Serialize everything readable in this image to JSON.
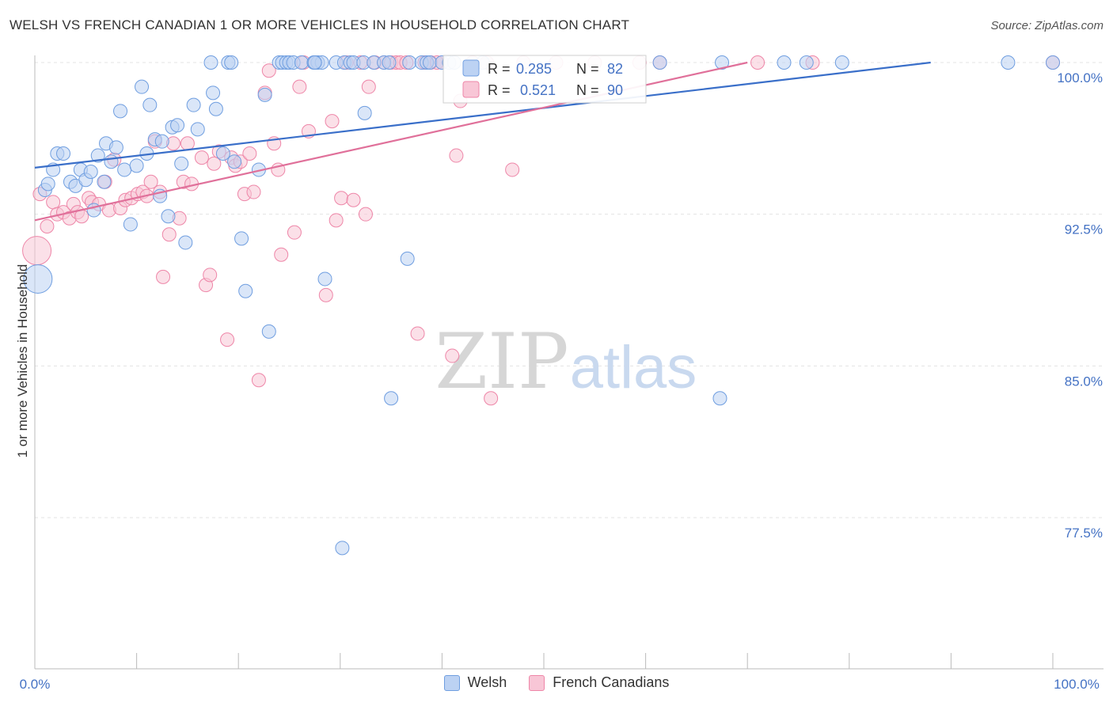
{
  "title": "WELSH VS FRENCH CANADIAN 1 OR MORE VEHICLES IN HOUSEHOLD CORRELATION CHART",
  "source": "Source: ZipAtlas.com",
  "watermark": {
    "zip": "ZIP",
    "atlas": "atlas"
  },
  "colors": {
    "welsh": "#6f9ee0",
    "welsh_fill": "#bcd2f3",
    "french": "#ee86a8",
    "french_fill": "#f8c6d6",
    "welsh_line": "#3a6fc9",
    "french_line": "#e0709a"
  },
  "legend": {
    "rows": [
      {
        "r_label": "R =",
        "r_value": "0.285",
        "n_label": "N =",
        "n_value": "82"
      },
      {
        "r_label": "R =",
        "r_value": "0.521",
        "n_label": "N =",
        "n_value": "90"
      }
    ]
  },
  "chart_data": {
    "type": "scatter",
    "title": "WELSH VS FRENCH CANADIAN 1 OR MORE VEHICLES IN HOUSEHOLD CORRELATION CHART",
    "xlabel": "",
    "ylabel": "1 or more Vehicles in Household",
    "xlim": [
      0,
      100
    ],
    "ylim": [
      70.5,
      101.5
    ],
    "x_tick_labels": [
      "0.0%",
      "100.0%"
    ],
    "y_ticks": [
      100.0,
      92.5,
      85.0,
      77.5
    ],
    "y_tick_labels": [
      "100.0%",
      "92.5%",
      "85.0%",
      "77.5%"
    ],
    "grid": true,
    "legend_position": "top-center",
    "series": [
      {
        "name": "Welsh",
        "trend": {
          "x": [
            0,
            88
          ],
          "y": [
            94.8,
            100.0
          ]
        },
        "points": [
          [
            0.3,
            89.3,
            3
          ],
          [
            1,
            93.7,
            2
          ],
          [
            1.3,
            94.0,
            1
          ],
          [
            1.8,
            94.7,
            1
          ],
          [
            2.2,
            95.5,
            1
          ],
          [
            2.8,
            95.5,
            1
          ],
          [
            3.5,
            94.1,
            1
          ],
          [
            4,
            93.9,
            1
          ],
          [
            4.5,
            94.7,
            1
          ],
          [
            5,
            94.2,
            1
          ],
          [
            5.5,
            94.6,
            1
          ],
          [
            5.8,
            92.7,
            1
          ],
          [
            6.2,
            95.4,
            1
          ],
          [
            6.8,
            94.1,
            1
          ],
          [
            7,
            96.0,
            1
          ],
          [
            7.5,
            95.1,
            1
          ],
          [
            8,
            95.8,
            1
          ],
          [
            8.4,
            97.6,
            1
          ],
          [
            8.8,
            94.7,
            1
          ],
          [
            9.4,
            92.0,
            1
          ],
          [
            10,
            94.9,
            1
          ],
          [
            10.5,
            98.8,
            1
          ],
          [
            11,
            95.5,
            1
          ],
          [
            11.3,
            97.9,
            1
          ],
          [
            11.8,
            96.2,
            1
          ],
          [
            12.5,
            96.1,
            1
          ],
          [
            12.3,
            93.4,
            1
          ],
          [
            13.1,
            92.4,
            1
          ],
          [
            13.5,
            96.8,
            1
          ],
          [
            14,
            96.9,
            1
          ],
          [
            14.4,
            95.0,
            1
          ],
          [
            14.8,
            91.1,
            1
          ],
          [
            15.6,
            97.9,
            1
          ],
          [
            16,
            96.7,
            1
          ],
          [
            17.3,
            100.0,
            1
          ],
          [
            17.5,
            98.5,
            1
          ],
          [
            17.8,
            97.7,
            1
          ],
          [
            18.5,
            95.5,
            1
          ],
          [
            19,
            100.0,
            1
          ],
          [
            19.3,
            100.0,
            1
          ],
          [
            19.6,
            95.1,
            1
          ],
          [
            20.3,
            91.3,
            1
          ],
          [
            20.7,
            88.7,
            1
          ],
          [
            22,
            94.7,
            1
          ],
          [
            22.6,
            98.4,
            1
          ],
          [
            23,
            86.7,
            1
          ],
          [
            24,
            100.0,
            1
          ],
          [
            24.3,
            100.0,
            1
          ],
          [
            24.7,
            100.0,
            1
          ],
          [
            25,
            100.0,
            1
          ],
          [
            25.4,
            100.0,
            1
          ],
          [
            26.2,
            100.0,
            1
          ],
          [
            27.4,
            100.0,
            1
          ],
          [
            27.8,
            100.0,
            1
          ],
          [
            28.2,
            100.0,
            1
          ],
          [
            27.5,
            100.0,
            1
          ],
          [
            27.5,
            100.0,
            1
          ],
          [
            28.5,
            89.3,
            1
          ],
          [
            29.6,
            100.0,
            1
          ],
          [
            30.4,
            100.0,
            1
          ],
          [
            31,
            100.0,
            1
          ],
          [
            31.3,
            100.0,
            1
          ],
          [
            32.3,
            100.0,
            1
          ],
          [
            33.3,
            100.0,
            1
          ],
          [
            30.2,
            76.0,
            1
          ],
          [
            32.4,
            97.5,
            1
          ],
          [
            34.3,
            100.0,
            1
          ],
          [
            35,
            83.4,
            1
          ],
          [
            34.8,
            100.0,
            1
          ],
          [
            36.6,
            90.3,
            1
          ],
          [
            36.8,
            100.0,
            1
          ],
          [
            38,
            100.0,
            1
          ],
          [
            38.5,
            100.0,
            1
          ],
          [
            38.8,
            100.0,
            1
          ],
          [
            40,
            100.0,
            1
          ],
          [
            40.7,
            100.0,
            1
          ],
          [
            41.2,
            100.0,
            1
          ],
          [
            44,
            100.0,
            1
          ],
          [
            61.4,
            100.0,
            1
          ],
          [
            67.3,
            83.4,
            1
          ],
          [
            67.5,
            100.0,
            1
          ],
          [
            73.6,
            100.0,
            1
          ],
          [
            75.8,
            100.0,
            1
          ],
          [
            79.3,
            100.0,
            1
          ],
          [
            95.6,
            100.0,
            1
          ],
          [
            100,
            100.0,
            1
          ]
        ]
      },
      {
        "name": "French Canadians",
        "trend": {
          "x": [
            0,
            70
          ],
          "y": [
            92.2,
            100.0
          ]
        },
        "points": [
          [
            0.2,
            90.7,
            3
          ],
          [
            0.5,
            93.5,
            1
          ],
          [
            1.2,
            91.9,
            1
          ],
          [
            1.8,
            93.1,
            1
          ],
          [
            2.2,
            92.5,
            1
          ],
          [
            2.8,
            92.6,
            1
          ],
          [
            3.4,
            92.3,
            1
          ],
          [
            3.8,
            93.0,
            1
          ],
          [
            4.2,
            92.6,
            1
          ],
          [
            4.6,
            92.4,
            1
          ],
          [
            5.3,
            93.3,
            1
          ],
          [
            5.6,
            93.1,
            1
          ],
          [
            6.3,
            93.0,
            1
          ],
          [
            6.9,
            94.1,
            1
          ],
          [
            7.3,
            92.7,
            1
          ],
          [
            7.8,
            95.2,
            1
          ],
          [
            8.4,
            92.8,
            1
          ],
          [
            8.9,
            93.2,
            1
          ],
          [
            9.5,
            93.3,
            1
          ],
          [
            10.1,
            93.5,
            1
          ],
          [
            10.6,
            93.6,
            1
          ],
          [
            11,
            93.4,
            1
          ],
          [
            11.4,
            94.1,
            1
          ],
          [
            11.8,
            96.1,
            1
          ],
          [
            12.3,
            93.6,
            1
          ],
          [
            12.6,
            89.4,
            1
          ],
          [
            13.2,
            91.5,
            1
          ],
          [
            13.6,
            96.0,
            1
          ],
          [
            14.2,
            92.3,
            1
          ],
          [
            14.6,
            94.1,
            1
          ],
          [
            15,
            96.0,
            1
          ],
          [
            15.4,
            94.0,
            1
          ],
          [
            16.4,
            95.3,
            1
          ],
          [
            16.8,
            89.0,
            1
          ],
          [
            17.2,
            89.5,
            1
          ],
          [
            17.6,
            95.0,
            1
          ],
          [
            18.1,
            95.6,
            1
          ],
          [
            18.9,
            86.3,
            1
          ],
          [
            19.3,
            95.3,
            1
          ],
          [
            19.7,
            94.9,
            1
          ],
          [
            20.2,
            95.1,
            1
          ],
          [
            20.6,
            93.5,
            1
          ],
          [
            21.1,
            95.5,
            1
          ],
          [
            21.5,
            93.6,
            1
          ],
          [
            22,
            84.3,
            1
          ],
          [
            22.6,
            98.5,
            1
          ],
          [
            23,
            99.6,
            1
          ],
          [
            23.5,
            96.0,
            1
          ],
          [
            23.9,
            94.7,
            1
          ],
          [
            24.2,
            90.5,
            1
          ],
          [
            25.5,
            91.6,
            1
          ],
          [
            26,
            98.8,
            1
          ],
          [
            26.4,
            100.0,
            1
          ],
          [
            26.9,
            96.6,
            1
          ],
          [
            27.5,
            100.0,
            1
          ],
          [
            28.6,
            88.5,
            1
          ],
          [
            29.2,
            97.1,
            1
          ],
          [
            29.6,
            92.2,
            1
          ],
          [
            30.1,
            93.3,
            1
          ],
          [
            30.6,
            100.0,
            1
          ],
          [
            31.3,
            93.2,
            1
          ],
          [
            32,
            100.0,
            1
          ],
          [
            32.5,
            92.5,
            1
          ],
          [
            32.8,
            98.8,
            1
          ],
          [
            33.4,
            100.0,
            1
          ],
          [
            34.3,
            100.0,
            1
          ],
          [
            35,
            100.0,
            1
          ],
          [
            35.5,
            100.0,
            1
          ],
          [
            35.9,
            100.0,
            1
          ],
          [
            36.5,
            100.0,
            1
          ],
          [
            37.6,
            86.6,
            1
          ],
          [
            38.3,
            100.0,
            1
          ],
          [
            38.9,
            100.0,
            1
          ],
          [
            39.5,
            100.0,
            1
          ],
          [
            40,
            100.0,
            1
          ],
          [
            41,
            85.5,
            1
          ],
          [
            41.4,
            95.4,
            1
          ],
          [
            41.8,
            98.1,
            1
          ],
          [
            43,
            100.0,
            1
          ],
          [
            44.4,
            100.0,
            1
          ],
          [
            44.8,
            83.4,
            1
          ],
          [
            46.9,
            94.7,
            1
          ],
          [
            48,
            100.0,
            1
          ],
          [
            51.2,
            100.0,
            1
          ],
          [
            55,
            100.0,
            1
          ],
          [
            59.4,
            100.0,
            1
          ],
          [
            61.4,
            100.0,
            1
          ],
          [
            71,
            100.0,
            1
          ],
          [
            76.4,
            100.0,
            1
          ],
          [
            100,
            100.0,
            1
          ]
        ]
      }
    ]
  },
  "bottom_legend": [
    "Welsh",
    "French Canadians"
  ]
}
